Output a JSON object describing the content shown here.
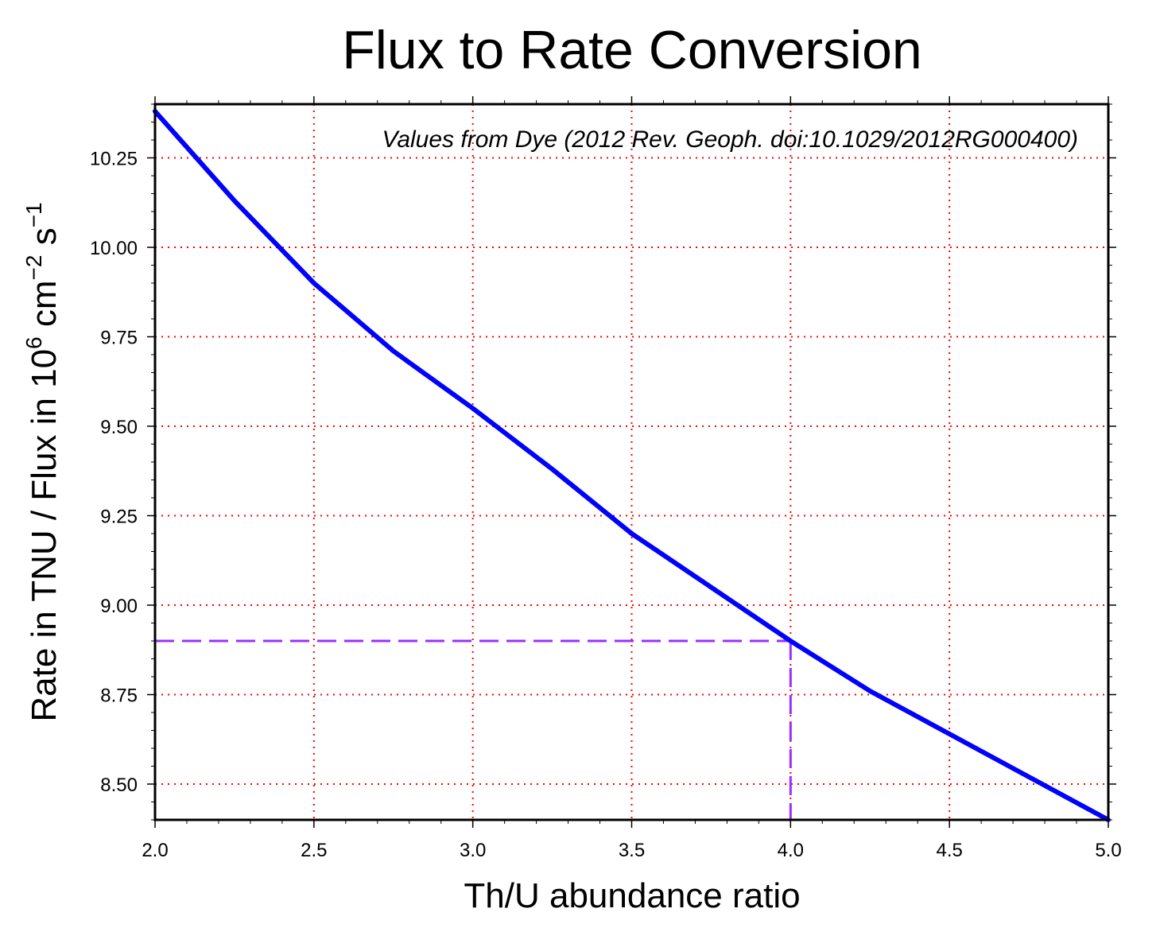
{
  "chart_data": {
    "type": "line",
    "title": "Flux to Rate Conversion",
    "xlabel": "Th/U abundance ratio",
    "ylabel": {
      "prefix": "Rate in TNU / Flux in 10",
      "exp1": "6",
      "mid": " cm",
      "exp2": "−2",
      "mid2": " s",
      "exp3": "−1"
    },
    "annotation": "Values from Dye (2012 Rev. Geoph. doi:10.1029/2012RG000400)",
    "xlim": [
      2.0,
      5.0
    ],
    "ylim": [
      8.4,
      10.4
    ],
    "x_ticks": [
      "2.0",
      "2.5",
      "3.0",
      "3.5",
      "4.0",
      "4.5",
      "5.0"
    ],
    "x_tick_values": [
      2.0,
      2.5,
      3.0,
      3.5,
      4.0,
      4.5,
      5.0
    ],
    "y_ticks": [
      "8.50",
      "8.75",
      "9.00",
      "9.25",
      "9.50",
      "9.75",
      "10.00",
      "10.25"
    ],
    "y_tick_values": [
      8.5,
      8.75,
      9.0,
      9.25,
      9.5,
      9.75,
      10.0,
      10.25
    ],
    "grid": true,
    "grid_color": "#ff0000",
    "series": [
      {
        "color": "#0000ff",
        "x": [
          2.0,
          2.25,
          2.5,
          2.75,
          3.0,
          3.25,
          3.5,
          3.75,
          4.0,
          4.25,
          4.5,
          4.75,
          5.0
        ],
        "values": [
          10.38,
          10.13,
          9.9,
          9.71,
          9.55,
          9.38,
          9.2,
          9.05,
          8.9,
          8.76,
          8.64,
          8.52,
          8.4
        ]
      }
    ],
    "reference": {
      "color": "#9b30ff",
      "x": 4.0,
      "y": 8.9
    }
  }
}
